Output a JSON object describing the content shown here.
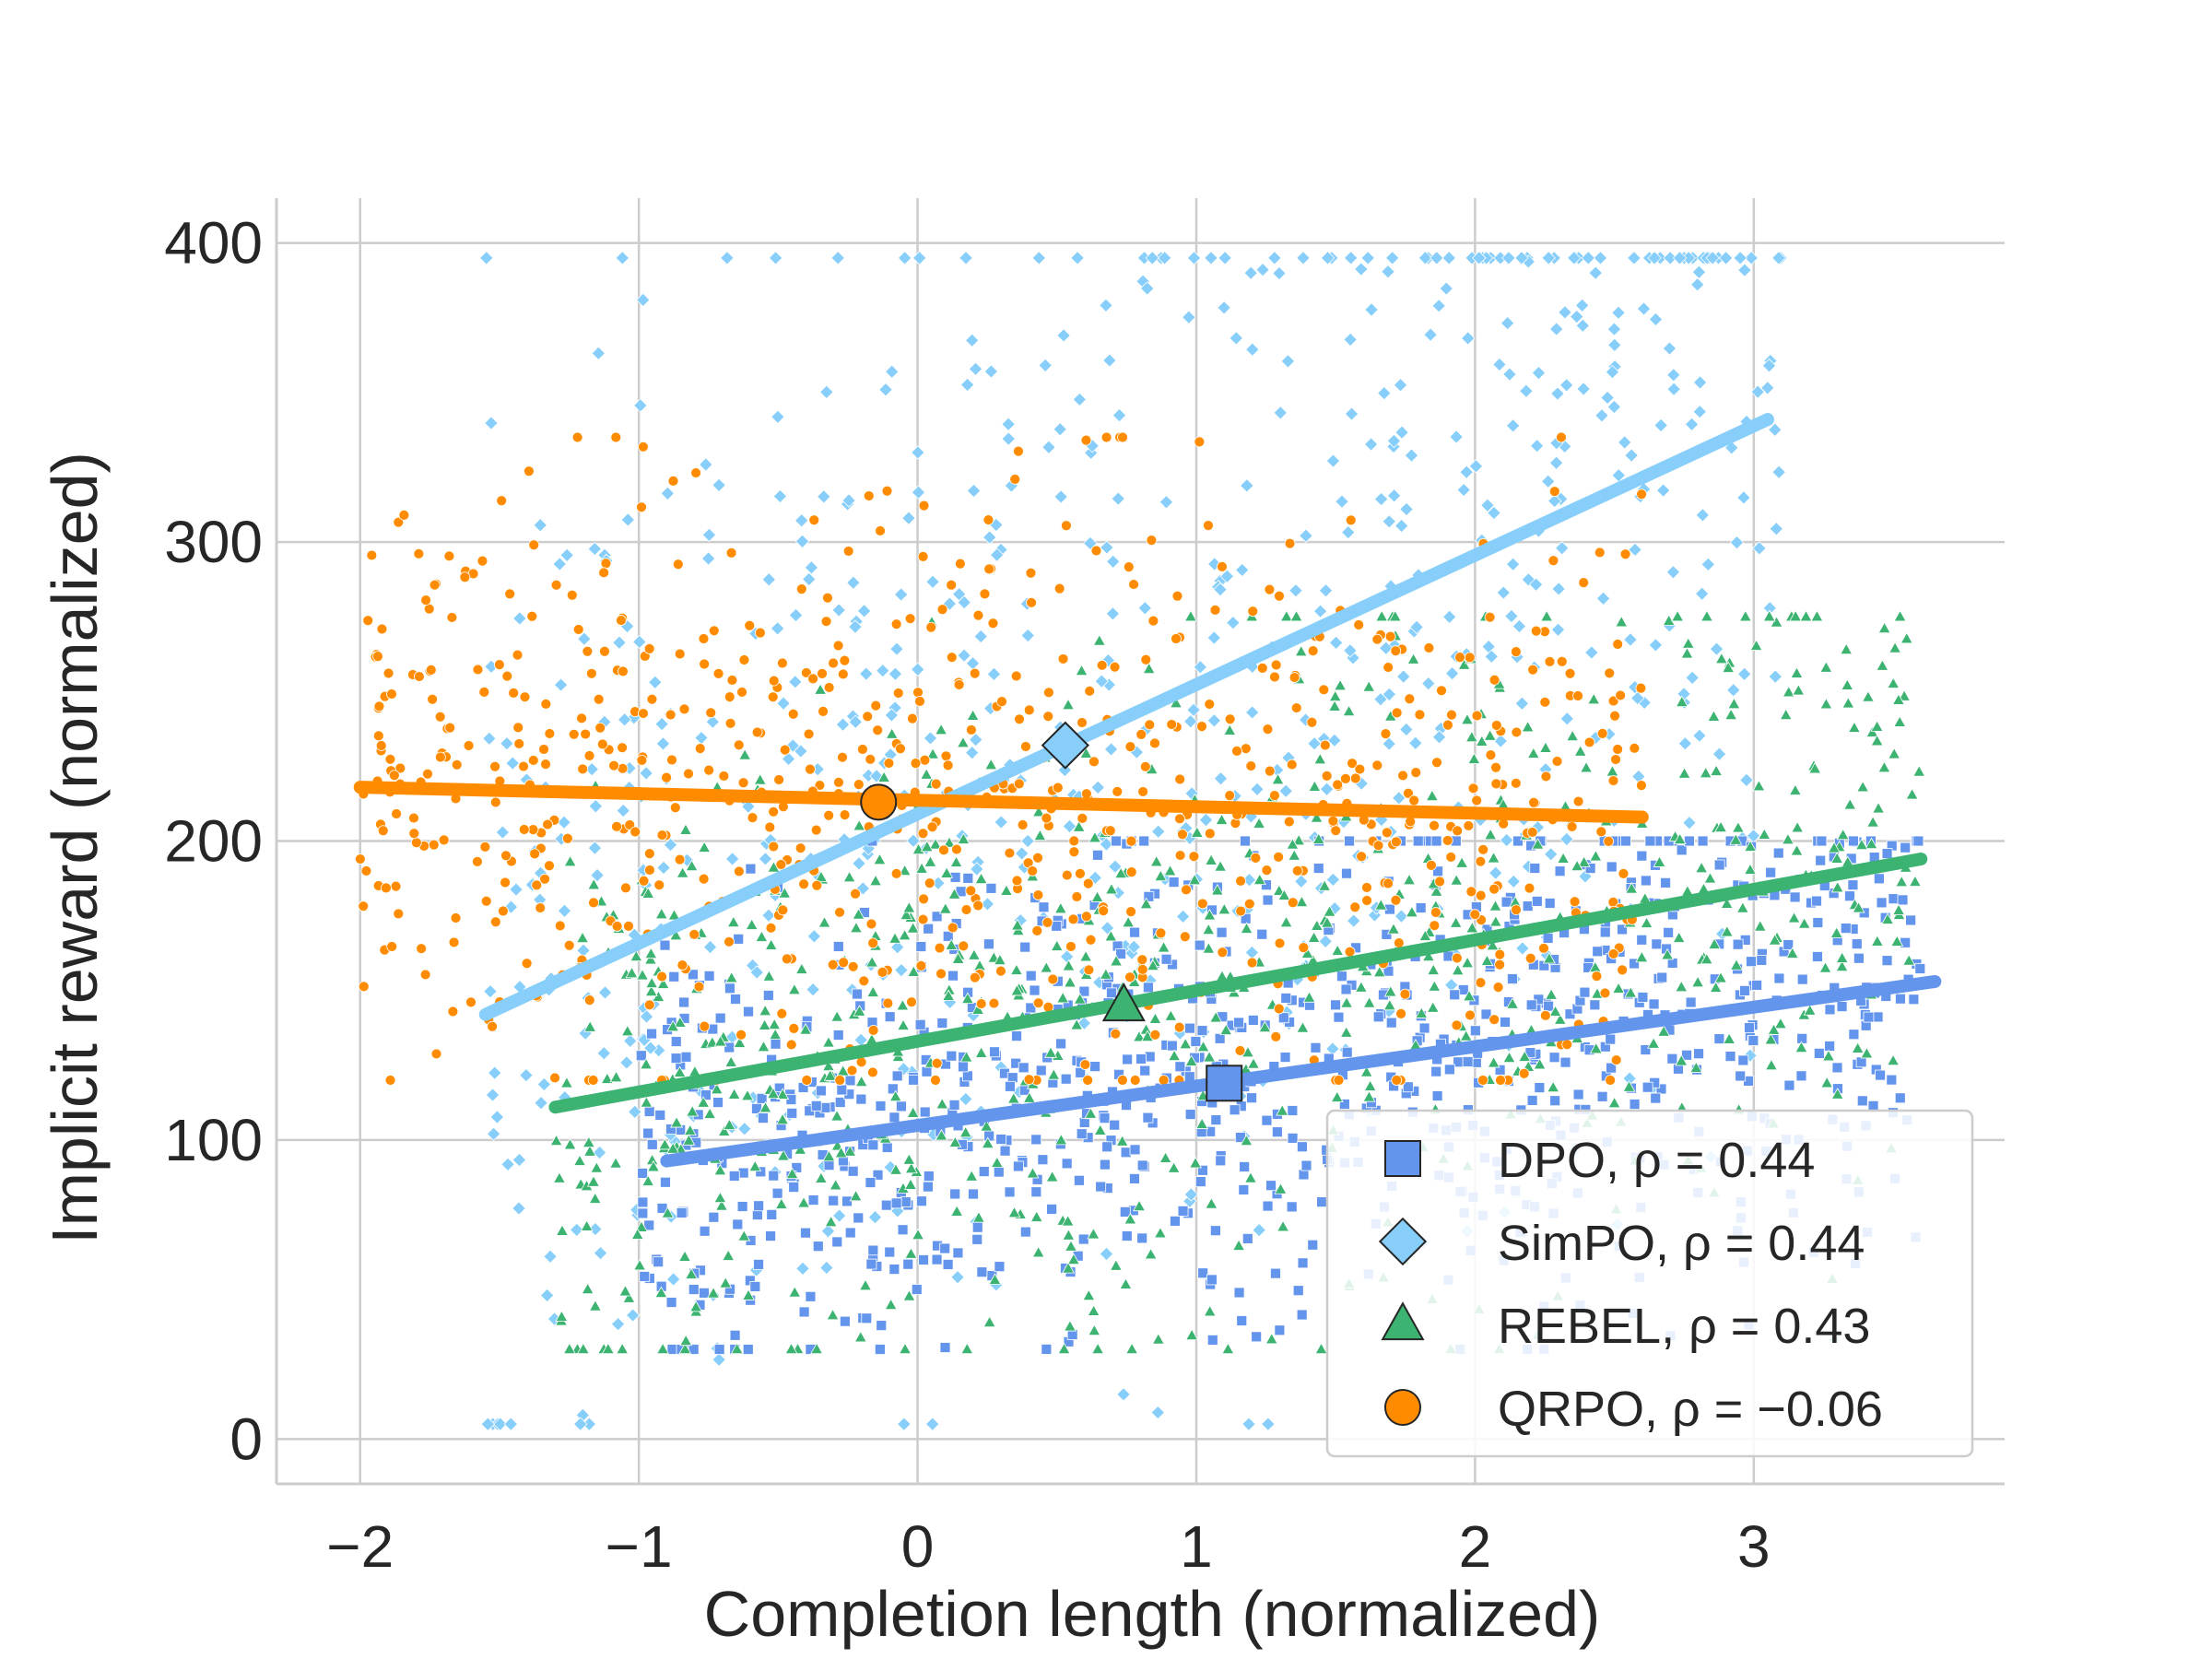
{
  "chart_data": {
    "type": "scatter",
    "title": "",
    "xlabel": "Completion length (normalized)",
    "ylabel": "Implicit reward (normalized)",
    "xlim": [
      -2.3,
      3.9
    ],
    "ylim": [
      -15,
      415
    ],
    "x_ticks": [
      -2,
      -1,
      0,
      1,
      2,
      3
    ],
    "y_ticks": [
      0,
      100,
      200,
      300,
      400
    ],
    "x_tick_labels": [
      "−2",
      "−1",
      "0",
      "1",
      "2",
      "3"
    ],
    "y_tick_labels": [
      "0",
      "100",
      "200",
      "300",
      "400"
    ],
    "grid": true,
    "legend_position": "bottom-right",
    "series": [
      {
        "name": "DPO",
        "legend_label": "DPO, ρ = 0.44",
        "color": "#6495ED",
        "marker": "square",
        "rho": 0.44,
        "fit": {
          "x": [
            -0.9,
            3.65
          ],
          "y": [
            93,
            153
          ]
        },
        "mean": {
          "x": 1.1,
          "y": 119
        },
        "cloud": {
          "x_range": [
            -1.0,
            3.6
          ],
          "y_range": [
            30,
            200
          ],
          "count": 900
        }
      },
      {
        "name": "SimPO",
        "legend_label": "SimPO, ρ = 0.44",
        "color": "#87CEFA",
        "marker": "diamond",
        "rho": 0.44,
        "fit": {
          "x": [
            -1.55,
            3.05
          ],
          "y": [
            142,
            341
          ]
        },
        "mean": {
          "x": 0.53,
          "y": 232
        },
        "cloud": {
          "x_range": [
            -1.55,
            3.1
          ],
          "y_range": [
            5,
            395
          ],
          "count": 700
        }
      },
      {
        "name": "REBEL",
        "legend_label": "REBEL, ρ = 0.43",
        "color": "#3CB371",
        "marker": "triangle",
        "rho": 0.43,
        "fit": {
          "x": [
            -1.3,
            3.6
          ],
          "y": [
            111,
            194
          ]
        },
        "mean": {
          "x": 0.74,
          "y": 145
        },
        "cloud": {
          "x_range": [
            -1.3,
            3.6
          ],
          "y_range": [
            30,
            275
          ],
          "count": 800
        }
      },
      {
        "name": "QRPO",
        "legend_label": "QRPO, ρ = −0.06",
        "color": "#FF8C00",
        "marker": "circle",
        "rho": -0.06,
        "fit": {
          "x": [
            -2.0,
            2.6
          ],
          "y": [
            218,
            208
          ]
        },
        "mean": {
          "x": -0.14,
          "y": 213
        },
        "cloud": {
          "x_range": [
            -2.0,
            2.6
          ],
          "y_range": [
            120,
            335
          ],
          "count": 750
        }
      }
    ]
  }
}
